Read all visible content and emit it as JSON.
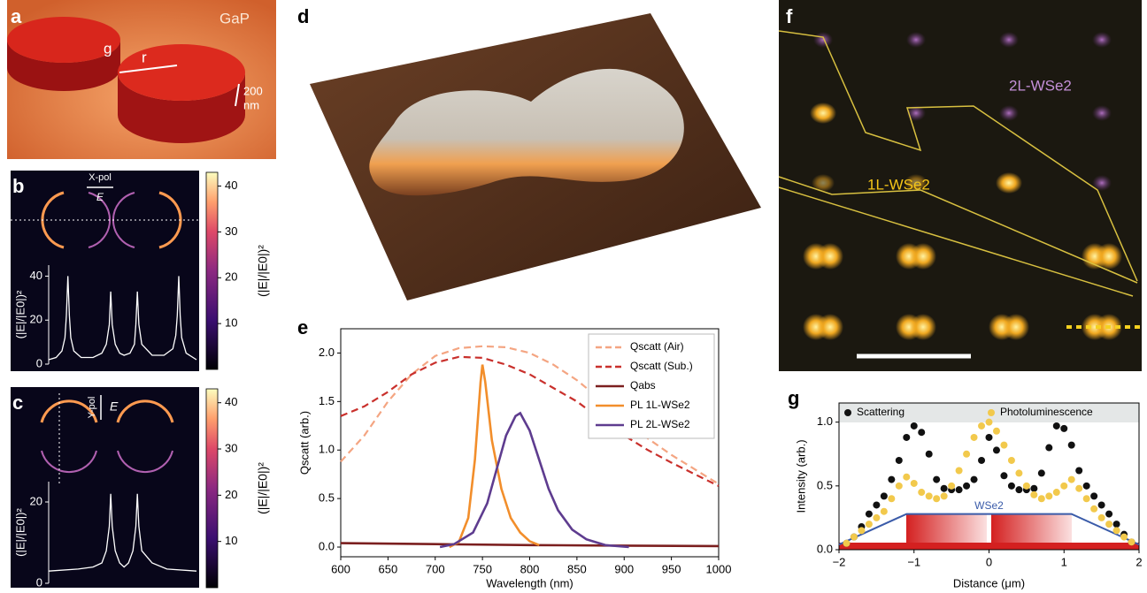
{
  "panels": {
    "a": {
      "label": "a",
      "material": "GaP",
      "gap": "g",
      "radius": "r",
      "scale": [
        "200",
        "nm"
      ]
    },
    "b": {
      "label": "b",
      "polarization": "X-pol",
      "field": "E"
    },
    "c": {
      "label": "c",
      "polarization": "Y-pol",
      "field": "E"
    },
    "d": {
      "label": "d"
    },
    "e": {
      "label": "e"
    },
    "f": {
      "label": "f",
      "annotations": [
        "2L-WSe2",
        "1L-WSe2"
      ]
    },
    "g": {
      "label": "g"
    }
  },
  "colorbar": {
    "label": "(|E|/|E0|)²",
    "lim": [
      0,
      43
    ],
    "ticks": [
      10,
      20,
      30,
      40
    ]
  },
  "chart_data": [
    {
      "type": "line",
      "ylabel": "(|E|/|E0|)²",
      "ylim": [
        0,
        45
      ],
      "yticks": [
        0,
        20,
        40
      ],
      "series": [
        {
          "color": "#ffffff",
          "x": [
            0,
            0.05,
            0.09,
            0.11,
            0.12,
            0.13,
            0.14,
            0.15,
            0.17,
            0.22,
            0.3,
            0.36,
            0.39,
            0.41,
            0.42,
            0.43,
            0.45,
            0.48,
            0.51,
            0.55,
            0.58,
            0.59,
            0.6,
            0.61,
            0.63,
            0.7,
            0.78,
            0.84,
            0.86,
            0.87,
            0.88,
            0.89,
            0.9,
            0.93,
            1.0
          ],
          "values": [
            2,
            3,
            6,
            12,
            22,
            40,
            22,
            12,
            6,
            3,
            3,
            5,
            9,
            18,
            33,
            18,
            9,
            5,
            4,
            5,
            9,
            18,
            33,
            18,
            9,
            4,
            4,
            7,
            13,
            22,
            40,
            22,
            12,
            5,
            2
          ]
        }
      ]
    },
    {
      "type": "line",
      "ylabel": "(|E|/|E0|)²",
      "ylim": [
        0,
        25
      ],
      "yticks": [
        0,
        20
      ],
      "series": [
        {
          "color": "#ffffff",
          "x": [
            0,
            0.2,
            0.3,
            0.36,
            0.39,
            0.41,
            0.42,
            0.43,
            0.45,
            0.48,
            0.51,
            0.54,
            0.57,
            0.59,
            0.6,
            0.61,
            0.63,
            0.7,
            0.8,
            1.0
          ],
          "values": [
            3,
            3.5,
            4,
            5,
            8,
            14,
            22,
            14,
            8,
            5,
            4,
            5,
            8,
            14,
            22,
            14,
            8,
            5,
            3.5,
            3
          ]
        }
      ]
    },
    {
      "type": "line",
      "xlabel": "Wavelength (nm)",
      "ylabel": "Qscatt (arb.)",
      "xlim": [
        600,
        1000
      ],
      "xticks": [
        600,
        650,
        700,
        750,
        800,
        850,
        900,
        950,
        1000
      ],
      "ylim": [
        -0.1,
        2.25
      ],
      "yticks": [
        {
          "value": 0,
          "label": "0.0"
        },
        {
          "value": 0.5,
          "label": "0.5"
        },
        {
          "value": 1,
          "label": "1.0"
        },
        {
          "value": 1.5,
          "label": "1.5"
        },
        {
          "value": 2,
          "label": "2.0"
        }
      ],
      "legend": "upper right",
      "series": [
        {
          "name": "Qscatt (Air)",
          "color": "#f4a582",
          "dash": true,
          "x": [
            600,
            625,
            650,
            675,
            700,
            725,
            750,
            775,
            800,
            825,
            850,
            875,
            900,
            925,
            950,
            975,
            1000
          ],
          "values": [
            0.88,
            1.15,
            1.5,
            1.78,
            1.97,
            2.05,
            2.07,
            2.06,
            2.0,
            1.88,
            1.72,
            1.52,
            1.32,
            1.12,
            0.95,
            0.8,
            0.65
          ]
        },
        {
          "name": "Qscatt (Sub.)",
          "color": "#c9302c",
          "dash": true,
          "x": [
            600,
            625,
            650,
            675,
            700,
            725,
            750,
            775,
            800,
            825,
            850,
            875,
            900,
            925,
            950,
            975,
            1000
          ],
          "values": [
            1.35,
            1.45,
            1.6,
            1.78,
            1.9,
            1.96,
            1.95,
            1.88,
            1.78,
            1.64,
            1.5,
            1.32,
            1.15,
            1.0,
            0.87,
            0.75,
            0.63
          ]
        },
        {
          "name": "Qabs",
          "color": "#7b1f1f",
          "dash": false,
          "x": [
            600,
            700,
            800,
            900,
            1000
          ],
          "values": [
            0.04,
            0.03,
            0.02,
            0.015,
            0.01
          ]
        },
        {
          "name": "PL 1L-WSe2",
          "color": "#f28e2b",
          "dash": false,
          "x": [
            715,
            725,
            735,
            742,
            748,
            750,
            753,
            760,
            770,
            780,
            790,
            800,
            810
          ],
          "values": [
            0,
            0.05,
            0.3,
            0.9,
            1.7,
            1.88,
            1.7,
            1.1,
            0.6,
            0.3,
            0.15,
            0.06,
            0.02
          ]
        },
        {
          "name": "PL 2L-WSe2",
          "color": "#5e3c8f",
          "dash": false,
          "x": [
            705,
            720,
            740,
            755,
            765,
            775,
            785,
            790,
            800,
            810,
            820,
            830,
            845,
            860,
            880,
            905
          ],
          "values": [
            0,
            0.03,
            0.15,
            0.45,
            0.8,
            1.15,
            1.35,
            1.38,
            1.2,
            0.9,
            0.6,
            0.38,
            0.18,
            0.08,
            0.02,
            0
          ]
        }
      ]
    },
    {
      "type": "scatter",
      "xlabel": "Distance (μm)",
      "ylabel": "Intensity (arb.)",
      "xlim": [
        -2,
        2
      ],
      "xticks": [
        {
          "value": -2,
          "label": "−2"
        },
        {
          "value": -1,
          "label": "−1"
        },
        0,
        1,
        2
      ],
      "ylim": [
        0,
        1.15
      ],
      "yticks": [
        {
          "value": 0,
          "label": "0.0"
        },
        {
          "value": 0.5,
          "label": "0.5"
        },
        {
          "value": 1,
          "label": "1.0"
        }
      ],
      "legend": "top",
      "series": [
        {
          "name": "Scattering",
          "color": "#111111",
          "x": [
            -1.9,
            -1.8,
            -1.7,
            -1.6,
            -1.5,
            -1.4,
            -1.3,
            -1.2,
            -1.1,
            -1.0,
            -0.9,
            -0.8,
            -0.7,
            -0.6,
            -0.5,
            -0.4,
            -0.3,
            -0.2,
            -0.1,
            0,
            0.1,
            0.2,
            0.3,
            0.4,
            0.5,
            0.6,
            0.7,
            0.8,
            0.9,
            1.0,
            1.1,
            1.2,
            1.3,
            1.4,
            1.5,
            1.6,
            1.7,
            1.8,
            1.9
          ],
          "values": [
            0.05,
            0.1,
            0.18,
            0.28,
            0.35,
            0.42,
            0.55,
            0.7,
            0.88,
            0.97,
            0.92,
            0.75,
            0.55,
            0.48,
            0.47,
            0.47,
            0.5,
            0.55,
            0.7,
            0.88,
            0.78,
            0.58,
            0.5,
            0.47,
            0.47,
            0.48,
            0.6,
            0.8,
            0.97,
            0.95,
            0.82,
            0.62,
            0.5,
            0.42,
            0.35,
            0.28,
            0.2,
            0.12,
            0.06
          ]
        },
        {
          "name": "Photoluminescence",
          "color": "#f2c94c",
          "x": [
            -1.9,
            -1.8,
            -1.7,
            -1.6,
            -1.5,
            -1.4,
            -1.3,
            -1.2,
            -1.1,
            -1.0,
            -0.9,
            -0.8,
            -0.7,
            -0.6,
            -0.5,
            -0.4,
            -0.3,
            -0.2,
            -0.1,
            0,
            0.1,
            0.2,
            0.3,
            0.4,
            0.5,
            0.6,
            0.7,
            0.8,
            0.9,
            1.0,
            1.1,
            1.2,
            1.3,
            1.4,
            1.5,
            1.6,
            1.7,
            1.8,
            1.9
          ],
          "values": [
            0.05,
            0.1,
            0.15,
            0.2,
            0.25,
            0.3,
            0.4,
            0.5,
            0.57,
            0.52,
            0.45,
            0.42,
            0.4,
            0.42,
            0.5,
            0.62,
            0.75,
            0.88,
            0.97,
            1.0,
            0.93,
            0.82,
            0.7,
            0.6,
            0.5,
            0.43,
            0.4,
            0.42,
            0.45,
            0.5,
            0.55,
            0.48,
            0.4,
            0.32,
            0.25,
            0.2,
            0.15,
            0.1,
            0.06
          ]
        }
      ],
      "profile": {
        "name": "WSe2",
        "color": "#3a5ba9",
        "x": [
          -2,
          -1.1,
          1.1,
          2
        ],
        "values": [
          0.04,
          0.28,
          0.28,
          0.04
        ]
      }
    }
  ]
}
